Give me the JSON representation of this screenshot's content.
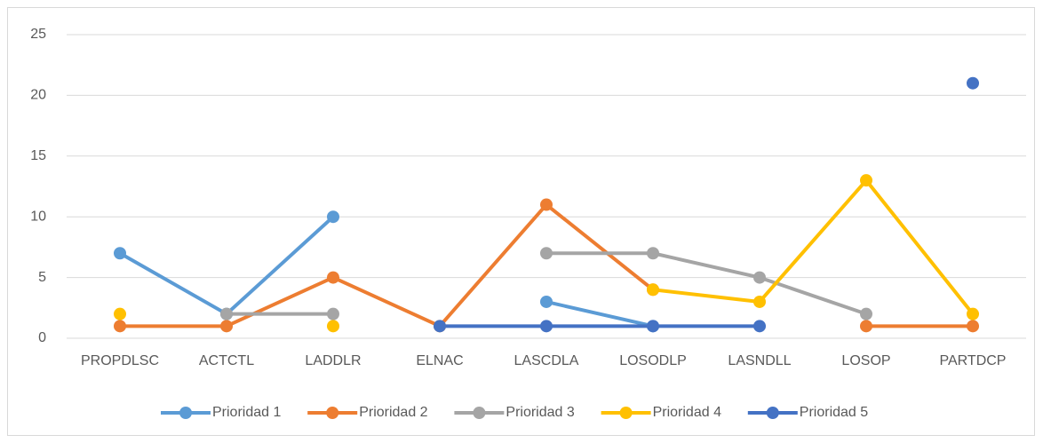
{
  "chart_data": {
    "type": "line",
    "categories": [
      "PROPDLSC",
      "ACTCTL",
      "LADDLR",
      "ELNAC",
      "LASCDLA",
      "LOSODLP",
      "LASNDLL",
      "LOSOP",
      "PARTDCP"
    ],
    "series": [
      {
        "name": "Prioridad 1",
        "color": "#5b9bd5",
        "values": [
          7,
          2,
          10,
          null,
          3,
          1,
          null,
          null,
          null
        ]
      },
      {
        "name": "Prioridad 2",
        "color": "#ed7d31",
        "values": [
          1,
          1,
          5,
          1,
          11,
          4,
          null,
          1,
          1
        ]
      },
      {
        "name": "Prioridad 3",
        "color": "#a5a5a5",
        "values": [
          null,
          2,
          2,
          null,
          7,
          7,
          5,
          2,
          null
        ]
      },
      {
        "name": "Prioridad 4",
        "color": "#ffc000",
        "values": [
          2,
          null,
          1,
          null,
          null,
          4,
          3,
          13,
          2
        ]
      },
      {
        "name": "Prioridad 5",
        "color": "#4472c4",
        "values": [
          null,
          null,
          null,
          1,
          1,
          1,
          1,
          null,
          21
        ]
      }
    ],
    "ylim": [
      0,
      25
    ],
    "yticks": [
      0,
      5,
      10,
      15,
      20,
      25
    ],
    "grid": true,
    "legend": "bottom"
  }
}
